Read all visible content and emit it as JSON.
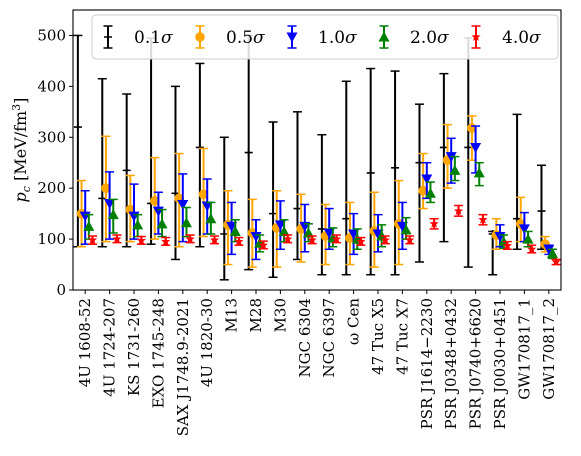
{
  "chart_data": {
    "type": "errorbar",
    "ylabel": "p_c [MeV/fm^3]",
    "ylabel_parts": {
      "p": "p",
      "sub": "c",
      "rest": " [MeV/fm",
      "sup": "3",
      "end": "]"
    },
    "ylim": [
      0,
      550
    ],
    "yticks": [
      0,
      100,
      200,
      300,
      400,
      500
    ],
    "grid": false,
    "legend_position": "top",
    "categories": [
      "4U 1608-52",
      "4U 1724-207",
      "KS 1731-260",
      "EXO 1745-248",
      "SAX J1748.9-2021",
      "4U 1820-30",
      "M13",
      "M28",
      "M30",
      "NGC 6304",
      "NGC 6397",
      "ω Cen",
      "47 Tuc X5",
      "47 Tuc X7",
      "PSR J1614−2230",
      "PSR J0348+0432",
      "PSR J0740+6620",
      "PSR J0030+0451",
      "GW170817_1",
      "GW170817_2"
    ],
    "series": [
      {
        "name": "0.1σ",
        "label_base": "0.1",
        "color": "#000000",
        "marker": "plus",
        "offset": -0.3,
        "center": [
          320,
          180,
          235,
          170,
          190,
          280,
          110,
          270,
          150,
          160,
          120,
          140,
          230,
          240,
          250,
          280,
          280,
          110,
          140,
          155
        ],
        "lower": [
          85,
          85,
          85,
          90,
          60,
          85,
          20,
          40,
          25,
          60,
          30,
          30,
          30,
          30,
          55,
          95,
          45,
          30,
          80,
          80
        ],
        "upper": [
          500,
          415,
          385,
          495,
          400,
          445,
          300,
          500,
          330,
          350,
          305,
          410,
          435,
          430,
          365,
          425,
          495,
          115,
          345,
          245
        ]
      },
      {
        "name": "0.5σ",
        "label_base": "0.5",
        "color": "#FFA500",
        "marker": "circle",
        "offset": -0.15,
        "center": [
          150,
          200,
          158,
          175,
          180,
          188,
          128,
          112,
          122,
          120,
          106,
          102,
          116,
          130,
          195,
          255,
          318,
          108,
          130,
          90
        ],
        "lower": [
          85,
          95,
          95,
          100,
          85,
          105,
          50,
          45,
          45,
          55,
          50,
          50,
          45,
          50,
          160,
          200,
          255,
          80,
          95,
          75
        ],
        "upper": [
          215,
          302,
          225,
          260,
          268,
          278,
          195,
          178,
          195,
          188,
          168,
          172,
          192,
          215,
          268,
          325,
          342,
          140,
          182,
          105
        ]
      },
      {
        "name": "1.0σ",
        "label_base": "1.0",
        "color": "#0000FF",
        "marker": "triangle-down",
        "offset": 0,
        "center": [
          145,
          170,
          145,
          155,
          168,
          165,
          125,
          105,
          128,
          125,
          112,
          110,
          110,
          125,
          218,
          262,
          280,
          105,
          120,
          80
        ],
        "lower": [
          90,
          100,
          100,
          110,
          95,
          110,
          70,
          60,
          80,
          75,
          80,
          70,
          75,
          80,
          180,
          210,
          230,
          85,
          95,
          70
        ],
        "upper": [
          195,
          232,
          208,
          192,
          228,
          218,
          172,
          138,
          175,
          168,
          160,
          150,
          148,
          172,
          250,
          298,
          322,
          128,
          152,
          88
        ]
      },
      {
        "name": "2.0σ",
        "label_base": "2.0",
        "color": "#008000",
        "marker": "triangle-up",
        "offset": 0.15,
        "center": [
          125,
          148,
          128,
          130,
          132,
          140,
          115,
          92,
          115,
          112,
          102,
          100,
          106,
          118,
          190,
          235,
          230,
          95,
          100,
          72
        ],
        "lower": [
          100,
          112,
          105,
          105,
          105,
          110,
          95,
          75,
          95,
          95,
          85,
          80,
          85,
          100,
          172,
          215,
          205,
          82,
          85,
          62
        ],
        "upper": [
          148,
          178,
          148,
          158,
          162,
          172,
          138,
          108,
          138,
          130,
          122,
          120,
          128,
          142,
          212,
          262,
          250,
          108,
          115,
          80
        ]
      },
      {
        "name": "4.0σ",
        "label_base": "4.0",
        "color": "#FF0000",
        "marker": "star",
        "offset": 0.3,
        "center": [
          98,
          100,
          97,
          95,
          100,
          98,
          95,
          88,
          100,
          98,
          100,
          95,
          98,
          98,
          130,
          155,
          138,
          87,
          80,
          55
        ],
        "lower": [
          90,
          93,
          90,
          88,
          93,
          91,
          88,
          81,
          93,
          91,
          93,
          88,
          91,
          91,
          120,
          145,
          128,
          80,
          73,
          50
        ],
        "upper": [
          106,
          108,
          105,
          103,
          108,
          106,
          103,
          96,
          108,
          106,
          108,
          103,
          106,
          106,
          140,
          166,
          148,
          95,
          88,
          60
        ]
      }
    ]
  }
}
